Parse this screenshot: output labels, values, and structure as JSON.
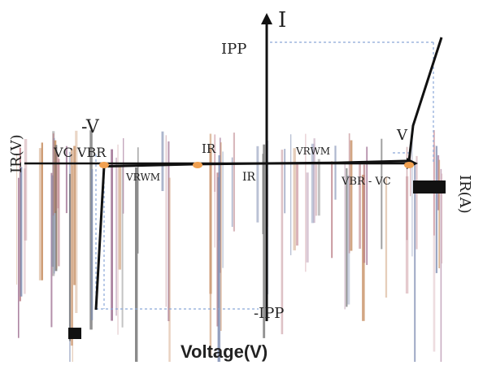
{
  "chart_data": {
    "type": "line",
    "title": "",
    "xlabel": "Voltage(V)",
    "ylabel": "",
    "axis_labels": {
      "current_up": "I",
      "voltage_left": "-V",
      "right_clipped": "IR(A)",
      "left_clipped": "IR(V)"
    },
    "annotations": {
      "ipp": "IPP",
      "neg_ipp": "-IPP",
      "vc_vbr": "VC  VBR",
      "vrwm_left": "VRWM",
      "vrwm_right": "VRWM",
      "ir_top": "IR",
      "ir_bottom": "IR",
      "vbr_vc": "VBR - VC",
      "v_right": "V"
    },
    "series": [
      {
        "values_description_free": true,
        "x": [
          -4.2,
          -4.0,
          -1.7,
          0,
          1.7,
          3.5,
          3.6,
          4.3
        ],
        "y": [
          -1.0,
          -0.02,
          -0.005,
          0,
          0.005,
          0.02,
          0.3,
          1.0
        ]
      }
    ],
    "marker_points": [
      {
        "x": -4.0,
        "y": 0
      },
      {
        "x": -1.7,
        "y": 0
      },
      {
        "x": 3.5,
        "y": 0
      }
    ],
    "reference_levels": {
      "ipp": 1.0,
      "neg_ipp": -1.0
    },
    "colors": {
      "curve": "#111111",
      "markers": "#f0a050",
      "dashed": "#8aa8d8",
      "noise": "#b87a82"
    }
  }
}
